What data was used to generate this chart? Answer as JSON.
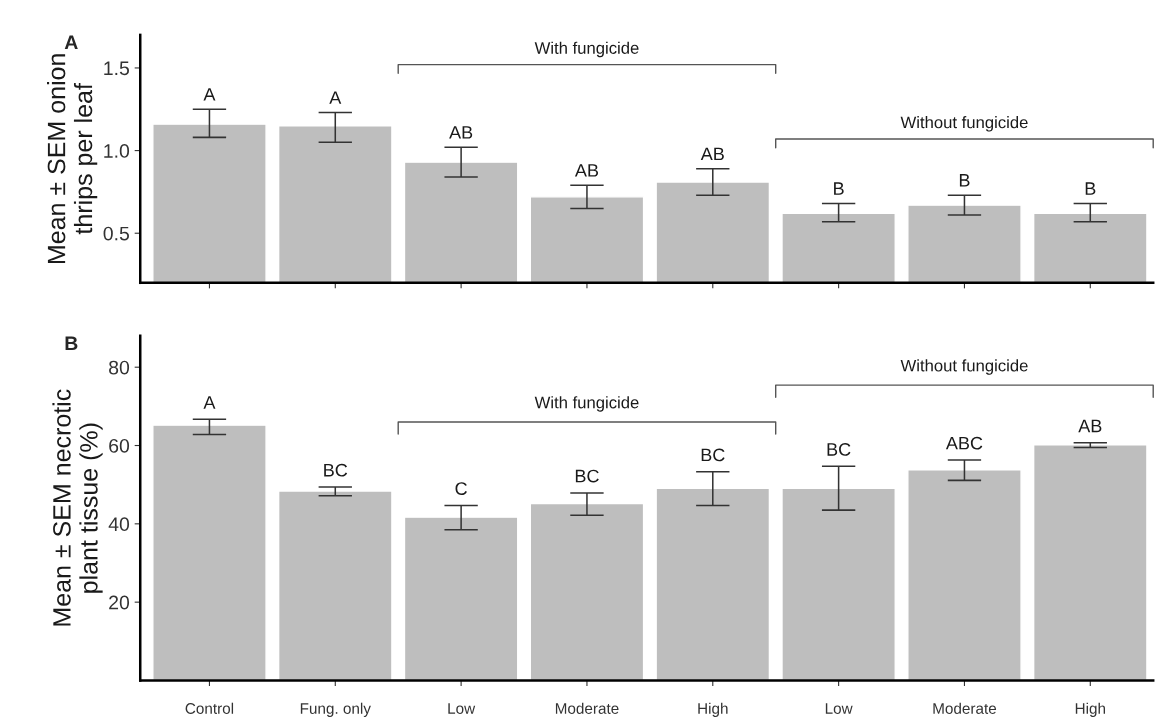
{
  "chart_data": [
    {
      "type": "bar",
      "title": "A",
      "ylabel": "Mean ± SEM onion\nthrips per leaf",
      "categories": [
        null,
        null,
        null,
        null,
        null,
        null,
        null,
        null
      ],
      "values": [
        1.16,
        1.15,
        0.93,
        0.72,
        0.81,
        0.62,
        0.67,
        0.62
      ],
      "errors": [
        [
          1.08,
          1.25
        ],
        [
          1.05,
          1.23
        ],
        [
          0.84,
          1.02
        ],
        [
          0.65,
          0.79
        ],
        [
          0.73,
          0.89
        ],
        [
          0.57,
          0.68
        ],
        [
          0.61,
          0.73
        ],
        [
          0.57,
          0.68
        ]
      ],
      "value_labels": [
        "A",
        "A",
        "AB",
        "AB",
        "AB",
        "B",
        "B",
        "B"
      ],
      "color": "#bebebe",
      "ylim": [
        0.2,
        1.7
      ],
      "yticks": [
        {
          "value": 0.5,
          "label": "0.5"
        },
        {
          "value": 1.0,
          "label": "1.0"
        },
        {
          "value": 1.5,
          "label": "1.5"
        }
      ],
      "tick_labels": "y",
      "grid": false,
      "annotations": [
        "With fungicide",
        "Without fungicide"
      ]
    },
    {
      "type": "bar",
      "title": "B",
      "ylabel": "Mean ± SEM necrotic\nplant tissue (%)",
      "categories": [
        "Control",
        "Fung. only",
        "Low",
        "Moderate",
        "High",
        "Low",
        "Moderate",
        "High"
      ],
      "values": [
        65.2,
        48.4,
        41.7,
        45.2,
        49.1,
        49.1,
        53.8,
        60.2
      ],
      "errors": [
        [
          62.8,
          66.7
        ],
        [
          47.2,
          49.4
        ],
        [
          38.5,
          44.7
        ],
        [
          42.2,
          47.9
        ],
        [
          44.7,
          53.3
        ],
        [
          43.5,
          54.7
        ],
        [
          51.1,
          56.3
        ],
        [
          59.5,
          60.7
        ]
      ],
      "value_labels": [
        "A",
        "BC",
        "C",
        "BC",
        "BC",
        "BC",
        "ABC",
        "AB"
      ],
      "color": "#bebebe",
      "ylim": [
        0,
        88
      ],
      "yticks": [
        20,
        40,
        60,
        80
      ],
      "grid": false,
      "annotations": [
        "With fungicide",
        "Without fungicide"
      ]
    }
  ]
}
